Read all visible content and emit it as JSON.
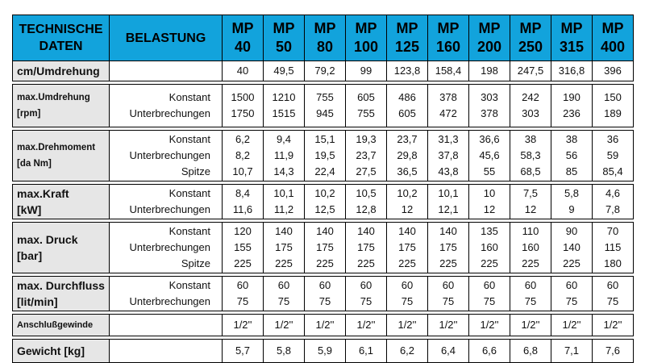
{
  "header": {
    "col0": [
      "TECHNISCHE",
      "DATEN"
    ],
    "col1": "BELASTUNG",
    "models": [
      [
        "MP",
        "40"
      ],
      [
        "MP",
        "50"
      ],
      [
        "MP",
        "80"
      ],
      [
        "MP",
        "100"
      ],
      [
        "MP",
        "125"
      ],
      [
        "MP",
        "160"
      ],
      [
        "MP",
        "200"
      ],
      [
        "MP",
        "250"
      ],
      [
        "MP",
        "315"
      ],
      [
        "MP",
        "400"
      ]
    ]
  },
  "rows": {
    "cm": {
      "label": [
        "cm/Umdrehung"
      ],
      "loads": [],
      "values": [
        [
          "40"
        ],
        [
          "49,5"
        ],
        [
          "79,2"
        ],
        [
          "99"
        ],
        [
          "123,8"
        ],
        [
          "158,4"
        ],
        [
          "198"
        ],
        [
          "247,5"
        ],
        [
          "316,8"
        ],
        [
          "396"
        ]
      ]
    },
    "umdrehung": {
      "label": [
        "max.Umdrehung",
        "[rpm]"
      ],
      "loads": [
        "Konstant",
        "Unterbrechungen"
      ],
      "values": [
        [
          "1500",
          "1750"
        ],
        [
          "1210",
          "1515"
        ],
        [
          "755",
          "945"
        ],
        [
          "605",
          "755"
        ],
        [
          "486",
          "605"
        ],
        [
          "378",
          "472"
        ],
        [
          "303",
          "378"
        ],
        [
          "242",
          "303"
        ],
        [
          "190",
          "236"
        ],
        [
          "150",
          "189"
        ]
      ]
    },
    "drehmoment": {
      "label": [
        "max.Drehmoment",
        "[da Nm]"
      ],
      "loads": [
        "Konstant",
        "Unterbrechungen",
        "Spitze"
      ],
      "values": [
        [
          "6,2",
          "8,2",
          "10,7"
        ],
        [
          "9,4",
          "11,9",
          "14,3"
        ],
        [
          "15,1",
          "19,5",
          "22,4"
        ],
        [
          "19,3",
          "23,7",
          "27,5"
        ],
        [
          "23,7",
          "29,8",
          "36,5"
        ],
        [
          "31,3",
          "37,8",
          "43,8"
        ],
        [
          "36,6",
          "45,6",
          "55"
        ],
        [
          "38",
          "58,3",
          "68,5"
        ],
        [
          "38",
          "56",
          "85"
        ],
        [
          "36",
          "59",
          "85,4"
        ]
      ]
    },
    "kraft": {
      "label": [
        "max.Kraft",
        "[kW]"
      ],
      "loads": [
        "Konstant",
        "Unterbrechungen"
      ],
      "values": [
        [
          "8,4",
          "11,6"
        ],
        [
          "10,1",
          "11,2"
        ],
        [
          "10,2",
          "12,5"
        ],
        [
          "10,5",
          "12,8"
        ],
        [
          "10,2",
          "12"
        ],
        [
          "10,1",
          "12,1"
        ],
        [
          "10",
          "12"
        ],
        [
          "7,5",
          "12"
        ],
        [
          "5,8",
          "9"
        ],
        [
          "4,6",
          "7,8"
        ]
      ]
    },
    "druck": {
      "label": [
        "max. Druck",
        "[bar]"
      ],
      "loads": [
        "Konstant",
        "Unterbrechungen",
        "Spitze"
      ],
      "values": [
        [
          "120",
          "155",
          "225"
        ],
        [
          "140",
          "175",
          "225"
        ],
        [
          "140",
          "175",
          "225"
        ],
        [
          "140",
          "175",
          "225"
        ],
        [
          "140",
          "175",
          "225"
        ],
        [
          "140",
          "175",
          "225"
        ],
        [
          "135",
          "160",
          "225"
        ],
        [
          "110",
          "160",
          "225"
        ],
        [
          "90",
          "140",
          "225"
        ],
        [
          "70",
          "115",
          "180"
        ]
      ]
    },
    "durchfluss": {
      "label": [
        "max. Durchfluss",
        "[lit/min]"
      ],
      "loads": [
        "Konstant",
        "Unterbrechungen"
      ],
      "values": [
        [
          "60",
          "75"
        ],
        [
          "60",
          "75"
        ],
        [
          "60",
          "75"
        ],
        [
          "60",
          "75"
        ],
        [
          "60",
          "75"
        ],
        [
          "60",
          "75"
        ],
        [
          "60",
          "75"
        ],
        [
          "60",
          "75"
        ],
        [
          "60",
          "75"
        ],
        [
          "60",
          "75"
        ]
      ]
    },
    "gewinde": {
      "label": [
        "Anschlußgewinde"
      ],
      "loads": [],
      "values": [
        [
          "1/2''"
        ],
        [
          "1/2''"
        ],
        [
          "1/2''"
        ],
        [
          "1/2''"
        ],
        [
          "1/2''"
        ],
        [
          "1/2''"
        ],
        [
          "1/2''"
        ],
        [
          "1/2''"
        ],
        [
          "1/2''"
        ],
        [
          "1/2''"
        ]
      ]
    },
    "gewicht": {
      "label": [
        "Gewicht [kg]"
      ],
      "loads": [],
      "values": [
        [
          "5,7"
        ],
        [
          "5,8"
        ],
        [
          "5,9"
        ],
        [
          "6,1"
        ],
        [
          "6,2"
        ],
        [
          "6,4"
        ],
        [
          "6,6"
        ],
        [
          "6,8"
        ],
        [
          "7,1"
        ],
        [
          "7,6"
        ]
      ]
    }
  }
}
